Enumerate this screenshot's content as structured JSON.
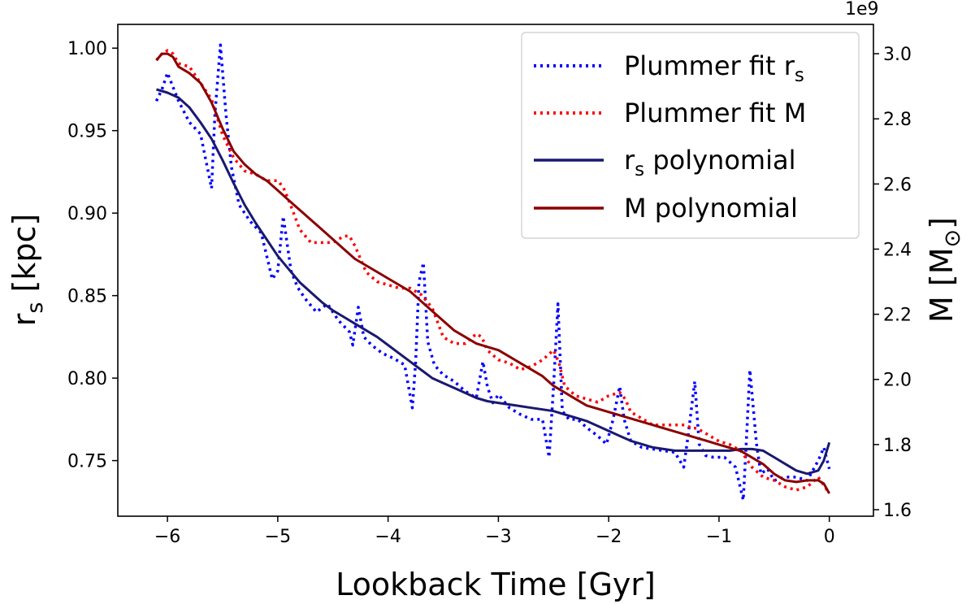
{
  "chart_data": {
    "type": "line",
    "xlabel": "Lookback Time [Gyr]",
    "ylabel_left": "r",
    "ylabel_left_sub": "s",
    "ylabel_left_unit": " [kpc]",
    "ylabel_right": "M [M",
    "ylabel_right_sub": "⊙",
    "ylabel_right_end": "]",
    "right_axis_offset": "1e9",
    "xlim": [
      -6.45,
      0.4
    ],
    "ylim_left": [
      0.7163,
      1.0144
    ],
    "ylim_right": [
      1.58,
      3.09
    ],
    "x_ticks": [
      -6,
      -5,
      -4,
      -3,
      -2,
      -1,
      0
    ],
    "x_tick_labels": [
      "−6",
      "−5",
      "−4",
      "−3",
      "−2",
      "−1",
      "0"
    ],
    "y_left_ticks": [
      0.75,
      0.8,
      0.85,
      0.9,
      0.95,
      1.0
    ],
    "y_left_tick_labels": [
      "0.75",
      "0.80",
      "0.85",
      "0.90",
      "0.95",
      "1.00"
    ],
    "y_right_ticks": [
      1.6,
      1.8,
      2.0,
      2.2,
      2.4,
      2.6,
      2.8,
      3.0
    ],
    "y_right_tick_labels": [
      "1.6",
      "1.8",
      "2.0",
      "2.2",
      "2.4",
      "2.6",
      "2.8",
      "3.0"
    ],
    "legend_position": "top-right",
    "grid": false,
    "legend": [
      {
        "label_main": "Plummer fit r",
        "label_sub": "s",
        "label_end": "",
        "color": "#0000ff",
        "style": "dotted"
      },
      {
        "label_main": "Plummer fit M",
        "label_sub": "",
        "label_end": "",
        "color": "#ff0000",
        "style": "dotted"
      },
      {
        "label_main": "r",
        "label_sub": "s",
        "label_end": " polynomial",
        "color": "#191970",
        "style": "solid"
      },
      {
        "label_main": "M polynomial",
        "label_sub": "",
        "label_end": "",
        "color": "#8b0000",
        "style": "solid"
      }
    ],
    "series": [
      {
        "axis": "left",
        "color": "#0000ff",
        "style": "dotted",
        "x": [
          -6.1,
          -6.05,
          -6.0,
          -5.9,
          -5.8,
          -5.7,
          -5.6,
          -5.57,
          -5.52,
          -5.47,
          -5.42,
          -5.35,
          -5.25,
          -5.15,
          -5.05,
          -5.0,
          -4.95,
          -4.88,
          -4.82,
          -4.75,
          -4.65,
          -4.55,
          -4.45,
          -4.35,
          -4.32,
          -4.27,
          -4.22,
          -4.15,
          -4.05,
          -3.95,
          -3.85,
          -3.78,
          -3.75,
          -3.72,
          -3.68,
          -3.64,
          -3.58,
          -3.5,
          -3.4,
          -3.3,
          -3.2,
          -3.14,
          -3.1,
          -3.05,
          -3.0,
          -2.9,
          -2.8,
          -2.7,
          -2.6,
          -2.54,
          -2.5,
          -2.46,
          -2.42,
          -2.36,
          -2.28,
          -2.2,
          -2.1,
          -2.02,
          -1.96,
          -1.9,
          -1.86,
          -1.8,
          -1.7,
          -1.6,
          -1.5,
          -1.4,
          -1.32,
          -1.28,
          -1.22,
          -1.18,
          -1.12,
          -1.05,
          -0.95,
          -0.85,
          -0.78,
          -0.75,
          -0.72,
          -0.66,
          -0.62,
          -0.56,
          -0.5,
          -0.4,
          -0.3,
          -0.2,
          -0.1,
          -0.05,
          0.0
        ],
        "y": [
          0.968,
          0.975,
          0.985,
          0.968,
          0.955,
          0.948,
          0.915,
          0.96,
          1.002,
          0.96,
          0.928,
          0.905,
          0.895,
          0.888,
          0.86,
          0.865,
          0.898,
          0.865,
          0.855,
          0.848,
          0.84,
          0.845,
          0.835,
          0.828,
          0.82,
          0.843,
          0.825,
          0.82,
          0.815,
          0.812,
          0.808,
          0.782,
          0.81,
          0.858,
          0.87,
          0.822,
          0.808,
          0.802,
          0.798,
          0.792,
          0.788,
          0.81,
          0.795,
          0.785,
          0.79,
          0.782,
          0.778,
          0.775,
          0.775,
          0.752,
          0.795,
          0.845,
          0.78,
          0.775,
          0.775,
          0.77,
          0.765,
          0.76,
          0.775,
          0.795,
          0.775,
          0.762,
          0.758,
          0.757,
          0.756,
          0.755,
          0.746,
          0.765,
          0.798,
          0.76,
          0.753,
          0.752,
          0.752,
          0.746,
          0.726,
          0.765,
          0.805,
          0.76,
          0.742,
          0.745,
          0.738,
          0.74,
          0.74,
          0.738,
          0.75,
          0.758,
          0.745
        ]
      },
      {
        "axis": "right",
        "color": "#ff0000",
        "style": "dotted",
        "x": [
          -6.1,
          -6.05,
          -6.0,
          -5.95,
          -5.9,
          -5.8,
          -5.7,
          -5.6,
          -5.5,
          -5.4,
          -5.3,
          -5.2,
          -5.1,
          -5.0,
          -4.95,
          -4.9,
          -4.8,
          -4.7,
          -4.6,
          -4.5,
          -4.4,
          -4.35,
          -4.3,
          -4.2,
          -4.1,
          -4.0,
          -3.9,
          -3.8,
          -3.7,
          -3.6,
          -3.5,
          -3.4,
          -3.3,
          -3.2,
          -3.15,
          -3.1,
          -3.0,
          -2.9,
          -2.8,
          -2.7,
          -2.6,
          -2.5,
          -2.45,
          -2.4,
          -2.3,
          -2.2,
          -2.1,
          -2.0,
          -1.9,
          -1.85,
          -1.8,
          -1.7,
          -1.6,
          -1.5,
          -1.4,
          -1.3,
          -1.25,
          -1.2,
          -1.1,
          -1.0,
          -0.9,
          -0.8,
          -0.7,
          -0.6,
          -0.5,
          -0.4,
          -0.3,
          -0.2,
          -0.1,
          0.0
        ],
        "y": [
          2.98,
          3.0,
          3.01,
          3.0,
          2.97,
          2.96,
          2.91,
          2.86,
          2.75,
          2.68,
          2.64,
          2.63,
          2.61,
          2.61,
          2.59,
          2.55,
          2.46,
          2.42,
          2.42,
          2.42,
          2.44,
          2.44,
          2.41,
          2.33,
          2.3,
          2.29,
          2.28,
          2.28,
          2.26,
          2.22,
          2.13,
          2.11,
          2.11,
          2.14,
          2.13,
          2.09,
          2.06,
          2.05,
          2.03,
          2.04,
          2.06,
          2.09,
          2.05,
          1.98,
          1.95,
          1.94,
          1.93,
          1.95,
          1.96,
          1.94,
          1.9,
          1.88,
          1.86,
          1.86,
          1.86,
          1.86,
          1.85,
          1.85,
          1.83,
          1.81,
          1.8,
          1.78,
          1.73,
          1.7,
          1.69,
          1.67,
          1.66,
          1.67,
          1.7,
          1.65
        ]
      },
      {
        "axis": "left",
        "color": "#191970",
        "style": "solid",
        "x": [
          -6.1,
          -6.0,
          -5.9,
          -5.8,
          -5.7,
          -5.6,
          -5.5,
          -5.4,
          -5.3,
          -5.2,
          -5.1,
          -5.0,
          -4.9,
          -4.8,
          -4.7,
          -4.6,
          -4.5,
          -4.4,
          -4.3,
          -4.2,
          -4.1,
          -4.0,
          -3.9,
          -3.8,
          -3.7,
          -3.6,
          -3.5,
          -3.4,
          -3.3,
          -3.2,
          -3.1,
          -3.0,
          -2.9,
          -2.8,
          -2.7,
          -2.6,
          -2.5,
          -2.4,
          -2.3,
          -2.2,
          -2.1,
          -2.0,
          -1.9,
          -1.8,
          -1.7,
          -1.6,
          -1.5,
          -1.4,
          -1.3,
          -1.2,
          -1.1,
          -1.0,
          -0.9,
          -0.8,
          -0.7,
          -0.6,
          -0.5,
          -0.4,
          -0.3,
          -0.2,
          -0.1,
          -0.05,
          0.0
        ],
        "y": [
          0.975,
          0.973,
          0.97,
          0.964,
          0.955,
          0.945,
          0.932,
          0.918,
          0.905,
          0.894,
          0.884,
          0.874,
          0.866,
          0.858,
          0.852,
          0.846,
          0.841,
          0.837,
          0.833,
          0.829,
          0.825,
          0.82,
          0.815,
          0.81,
          0.805,
          0.8,
          0.797,
          0.794,
          0.791,
          0.788,
          0.786,
          0.785,
          0.784,
          0.783,
          0.782,
          0.781,
          0.78,
          0.778,
          0.776,
          0.774,
          0.771,
          0.768,
          0.765,
          0.762,
          0.76,
          0.758,
          0.757,
          0.756,
          0.756,
          0.756,
          0.756,
          0.756,
          0.756,
          0.757,
          0.757,
          0.756,
          0.752,
          0.748,
          0.744,
          0.742,
          0.744,
          0.75,
          0.761
        ]
      },
      {
        "axis": "right",
        "color": "#8b0000",
        "style": "solid",
        "x": [
          -6.1,
          -6.05,
          -6.0,
          -5.95,
          -5.9,
          -5.8,
          -5.7,
          -5.6,
          -5.5,
          -5.4,
          -5.3,
          -5.2,
          -5.1,
          -5.0,
          -4.9,
          -4.8,
          -4.7,
          -4.6,
          -4.5,
          -4.4,
          -4.3,
          -4.2,
          -4.1,
          -4.0,
          -3.9,
          -3.8,
          -3.7,
          -3.6,
          -3.5,
          -3.4,
          -3.3,
          -3.2,
          -3.1,
          -3.0,
          -2.9,
          -2.8,
          -2.7,
          -2.6,
          -2.5,
          -2.4,
          -2.3,
          -2.2,
          -2.1,
          -2.0,
          -1.9,
          -1.8,
          -1.7,
          -1.6,
          -1.5,
          -1.4,
          -1.3,
          -1.2,
          -1.1,
          -1.0,
          -0.9,
          -0.8,
          -0.7,
          -0.6,
          -0.5,
          -0.4,
          -0.3,
          -0.2,
          -0.1,
          -0.05,
          0.0
        ],
        "y": [
          2.98,
          3.0,
          3.0,
          2.99,
          2.96,
          2.94,
          2.91,
          2.85,
          2.77,
          2.7,
          2.66,
          2.63,
          2.61,
          2.58,
          2.55,
          2.52,
          2.49,
          2.46,
          2.43,
          2.4,
          2.37,
          2.35,
          2.33,
          2.31,
          2.29,
          2.27,
          2.24,
          2.21,
          2.18,
          2.15,
          2.13,
          2.11,
          2.1,
          2.09,
          2.07,
          2.05,
          2.03,
          2.01,
          1.98,
          1.96,
          1.94,
          1.92,
          1.91,
          1.9,
          1.89,
          1.88,
          1.87,
          1.86,
          1.85,
          1.84,
          1.83,
          1.82,
          1.81,
          1.8,
          1.79,
          1.78,
          1.76,
          1.74,
          1.71,
          1.69,
          1.685,
          1.69,
          1.69,
          1.68,
          1.65
        ]
      }
    ]
  }
}
